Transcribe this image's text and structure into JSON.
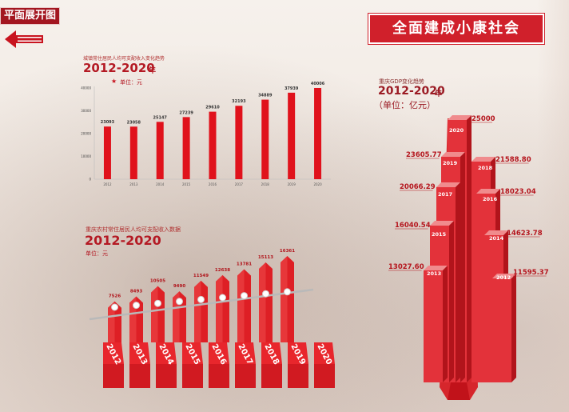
{
  "header": {
    "top_left_label": "平面展开图",
    "main_title": "全面建成小康社会"
  },
  "colors": {
    "accent": "#d0202b",
    "dark_red": "#a31620",
    "background": "#f3ede6"
  },
  "urban_panel": {
    "subtitle": "城镇常住居民人均可支配收入变化趋势",
    "years_title": "2012-2020",
    "years_suffix": "年",
    "unit": "单位：元",
    "star_icon": "star-icon"
  },
  "rural_panel": {
    "subtitle": "重庆农村常住居民人均可支配收入数据",
    "years_title": "2012-2020",
    "unit": "单位：元"
  },
  "gdp_panel": {
    "subtitle": "重庆GDP变化趋势",
    "years_title": "2012-2020",
    "years_suffix": "年",
    "unit": "（单位：亿元）"
  },
  "chart_data": [
    {
      "type": "bar",
      "title": "城镇常住居民人均可支配收入变化趋势",
      "categories": [
        "2012",
        "2013",
        "2014",
        "2015",
        "2016",
        "2017",
        "2018",
        "2019",
        "2020"
      ],
      "values": [
        23093,
        23058,
        25147,
        27239,
        29610,
        32193,
        34889,
        37939,
        40006
      ],
      "y_ticks": [
        "0",
        "10000",
        "20000",
        "30000",
        "40000"
      ],
      "ylim": [
        0,
        40000
      ],
      "grid": false
    },
    {
      "type": "bar",
      "title": "重庆农村常住居民人均可支配收入数据",
      "categories": [
        "2012",
        "2013",
        "2014",
        "2015",
        "2016",
        "2017",
        "2018",
        "2019",
        "2020"
      ],
      "values": [
        7526,
        8493,
        10505,
        9490,
        11549,
        12638,
        13781,
        15113,
        16361
      ],
      "ylim": [
        0,
        17000
      ]
    },
    {
      "type": "bar",
      "title": "重庆GDP变化趋势",
      "categories": [
        "2012",
        "2013",
        "2014",
        "2015",
        "2016",
        "2017",
        "2018",
        "2019",
        "2020"
      ],
      "values": [
        11595.37,
        13027.6,
        14623.78,
        16040.54,
        18023.04,
        20066.29,
        21588.8,
        23605.77,
        25000
      ],
      "value_labels": [
        "11595.37",
        "13027.60",
        "14623.78",
        "16040.54",
        "18023.04",
        "20066.29",
        "21588.80",
        "23605.77",
        "25000"
      ],
      "ylim": [
        0,
        25000
      ]
    }
  ]
}
